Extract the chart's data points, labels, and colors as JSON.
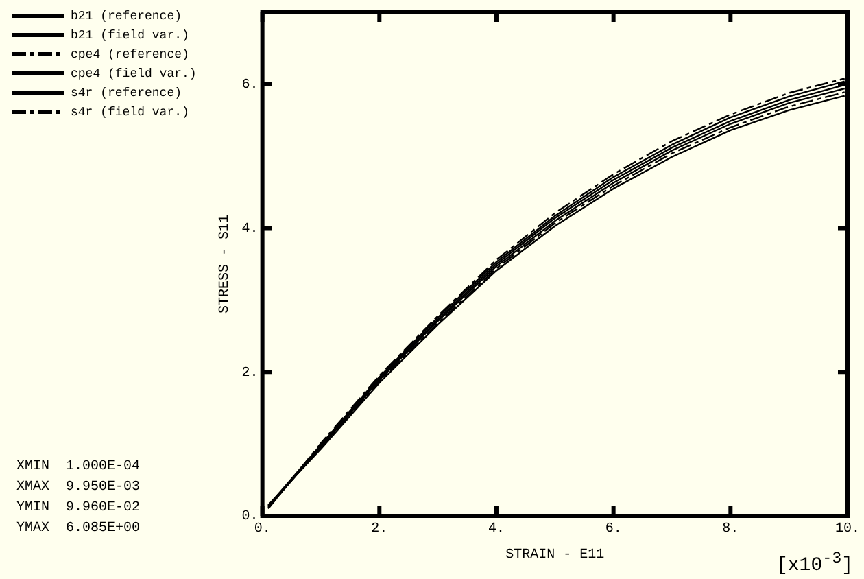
{
  "chart_data": {
    "type": "line",
    "xlabel": "STRAIN - E11",
    "ylabel": "STRESS - S11",
    "x": [
      0.1,
      1,
      2,
      3,
      4,
      5,
      6,
      7,
      8,
      9,
      9.95
    ],
    "series": [
      {
        "name": "b21 (reference)",
        "color": "#000000",
        "line_style": "solid",
        "values": [
          0.11,
          0.98,
          1.91,
          2.73,
          3.5,
          4.14,
          4.67,
          5.12,
          5.49,
          5.78,
          5.99
        ]
      },
      {
        "name": "b21 (field var.)",
        "color": "#000000",
        "line_style": "solid",
        "values": [
          0.12,
          0.96,
          1.89,
          2.71,
          3.47,
          4.1,
          4.63,
          5.08,
          5.45,
          5.74,
          5.94
        ]
      },
      {
        "name": "cpe4 (reference)",
        "color": "#000000",
        "line_style": "dashed",
        "values": [
          0.13,
          0.95,
          1.87,
          2.68,
          3.44,
          4.07,
          4.59,
          5.04,
          5.4,
          5.69,
          5.89
        ]
      },
      {
        "name": "cpe4 (field var.)",
        "color": "#000000",
        "line_style": "solid",
        "values": [
          0.14,
          0.99,
          1.93,
          2.76,
          3.53,
          4.17,
          4.71,
          5.16,
          5.54,
          5.83,
          6.04
        ]
      },
      {
        "name": "s4r (reference)",
        "color": "#000000",
        "line_style": "solid",
        "values": [
          0.15,
          0.93,
          1.85,
          2.66,
          3.41,
          4.03,
          4.55,
          4.99,
          5.36,
          5.64,
          5.84
        ]
      },
      {
        "name": "s4r (field var.)",
        "color": "#000000",
        "line_style": "dashed",
        "values": [
          0.1,
          1.01,
          1.95,
          2.78,
          3.56,
          4.21,
          4.75,
          5.21,
          5.58,
          5.88,
          6.08
        ]
      }
    ],
    "xlim": [
      0,
      10
    ],
    "xticks": [
      {
        "value": 0,
        "label": "0."
      },
      {
        "value": 2,
        "label": "2."
      },
      {
        "value": 4,
        "label": "4."
      },
      {
        "value": 6,
        "label": "6."
      },
      {
        "value": 8,
        "label": "8."
      },
      {
        "value": 10,
        "label": "10."
      }
    ],
    "ylim": [
      0,
      7
    ],
    "yticks": [
      {
        "value": 0,
        "label": "0."
      },
      {
        "value": 2,
        "label": "2."
      },
      {
        "value": 4,
        "label": "4."
      },
      {
        "value": 6,
        "label": "6."
      }
    ],
    "grid": false,
    "legend": "left",
    "marker": "none",
    "annotations": [
      "[x10$^{-3}$]",
      "XMIN  1.000E-04",
      "XMAX  9.950E-03",
      "YMIN  9.960E-02",
      "YMAX  6.085E+00"
    ]
  }
}
